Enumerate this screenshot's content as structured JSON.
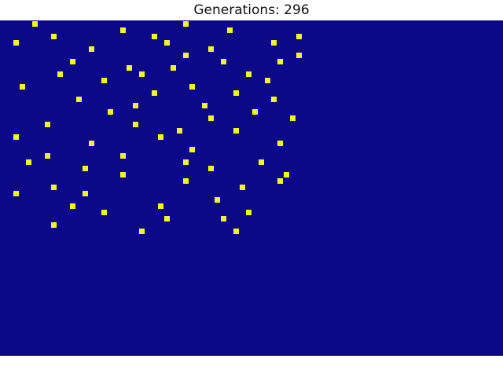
{
  "window": {
    "title": "Generations: 296"
  },
  "grid": {
    "cell_size_label": "",
    "colors": {
      "dead": "#0d0887",
      "alive": "#f0f921"
    },
    "live_cells": [
      [
        0,
        5
      ],
      [
        0,
        29
      ],
      [
        1,
        19
      ],
      [
        1,
        36
      ],
      [
        2,
        8
      ],
      [
        2,
        24
      ],
      [
        2,
        47
      ],
      [
        3,
        2
      ],
      [
        3,
        26
      ],
      [
        3,
        43
      ],
      [
        4,
        14
      ],
      [
        4,
        33
      ],
      [
        5,
        29
      ],
      [
        5,
        47
      ],
      [
        6,
        11
      ],
      [
        6,
        35
      ],
      [
        6,
        44
      ],
      [
        7,
        20
      ],
      [
        7,
        27
      ],
      [
        8,
        9
      ],
      [
        8,
        22
      ],
      [
        8,
        39
      ],
      [
        9,
        16
      ],
      [
        9,
        42
      ],
      [
        10,
        3
      ],
      [
        10,
        30
      ],
      [
        11,
        24
      ],
      [
        11,
        37
      ],
      [
        12,
        12
      ],
      [
        12,
        43
      ],
      [
        13,
        21
      ],
      [
        13,
        32
      ],
      [
        14,
        17
      ],
      [
        14,
        40
      ],
      [
        15,
        33
      ],
      [
        15,
        46
      ],
      [
        16,
        7
      ],
      [
        16,
        21
      ],
      [
        17,
        28
      ],
      [
        17,
        37
      ],
      [
        18,
        2
      ],
      [
        18,
        25
      ],
      [
        19,
        14
      ],
      [
        19,
        44
      ],
      [
        20,
        30
      ],
      [
        21,
        7
      ],
      [
        21,
        19
      ],
      [
        22,
        4
      ],
      [
        22,
        29
      ],
      [
        22,
        41
      ],
      [
        23,
        13
      ],
      [
        23,
        33
      ],
      [
        24,
        19
      ],
      [
        24,
        45
      ],
      [
        25,
        29
      ],
      [
        25,
        44
      ],
      [
        26,
        8
      ],
      [
        26,
        38
      ],
      [
        27,
        2
      ],
      [
        27,
        13
      ],
      [
        28,
        34
      ],
      [
        29,
        11
      ],
      [
        29,
        25
      ],
      [
        30,
        16
      ],
      [
        30,
        39
      ],
      [
        31,
        26
      ],
      [
        31,
        35
      ],
      [
        32,
        8
      ],
      [
        33,
        22
      ],
      [
        33,
        37
      ]
    ]
  }
}
